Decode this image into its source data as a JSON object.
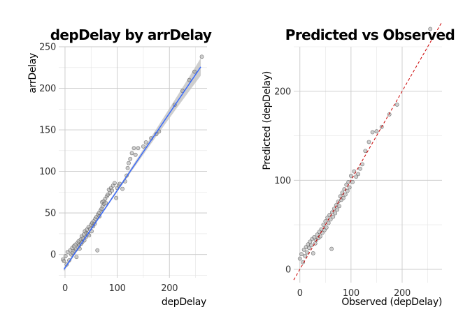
{
  "chart_data": [
    {
      "type": "scatter",
      "title": "depDelay by arrDelay",
      "xlabel": "depDelay",
      "ylabel": "arrDelay",
      "xlim": [
        -12,
        272
      ],
      "ylim": [
        -28,
        250
      ],
      "xticks": [
        0,
        100,
        200
      ],
      "yticks": [
        0,
        50,
        100,
        150,
        200,
        250
      ],
      "grid": true,
      "colors": {
        "points_fill": "#a6a6a6",
        "points_stroke": "#555555",
        "trend_line": "#3366ff",
        "ribbon": "#bdbdbd"
      },
      "trend": {
        "type": "linear",
        "intercept": -16,
        "slope": 0.93,
        "x_range": [
          -2,
          260
        ]
      },
      "points": [
        [
          -4,
          -6
        ],
        [
          -2,
          -8
        ],
        [
          1,
          -2
        ],
        [
          3,
          -12
        ],
        [
          5,
          3
        ],
        [
          8,
          -7
        ],
        [
          10,
          5
        ],
        [
          12,
          0
        ],
        [
          14,
          8
        ],
        [
          15,
          2
        ],
        [
          17,
          10
        ],
        [
          18,
          4
        ],
        [
          20,
          12
        ],
        [
          21,
          6
        ],
        [
          22,
          -3
        ],
        [
          24,
          14
        ],
        [
          25,
          9
        ],
        [
          26,
          16
        ],
        [
          27,
          11
        ],
        [
          28,
          7
        ],
        [
          30,
          18
        ],
        [
          31,
          13
        ],
        [
          32,
          22
        ],
        [
          33,
          15
        ],
        [
          34,
          19
        ],
        [
          36,
          24
        ],
        [
          37,
          17
        ],
        [
          38,
          28
        ],
        [
          40,
          21
        ],
        [
          41,
          26
        ],
        [
          42,
          30
        ],
        [
          44,
          25
        ],
        [
          45,
          33
        ],
        [
          46,
          23
        ],
        [
          48,
          31
        ],
        [
          50,
          36
        ],
        [
          51,
          28
        ],
        [
          52,
          38
        ],
        [
          54,
          34
        ],
        [
          55,
          40
        ],
        [
          57,
          37
        ],
        [
          58,
          43
        ],
        [
          60,
          45
        ],
        [
          62,
          5
        ],
        [
          63,
          48
        ],
        [
          65,
          50
        ],
        [
          66,
          46
        ],
        [
          68,
          53
        ],
        [
          70,
          55
        ],
        [
          71,
          63
        ],
        [
          72,
          58
        ],
        [
          74,
          64
        ],
        [
          75,
          61
        ],
        [
          77,
          67
        ],
        [
          78,
          62
        ],
        [
          80,
          70
        ],
        [
          82,
          72
        ],
        [
          84,
          78
        ],
        [
          86,
          74
        ],
        [
          88,
          80
        ],
        [
          90,
          77
        ],
        [
          92,
          83
        ],
        [
          95,
          86
        ],
        [
          98,
          68
        ],
        [
          100,
          80
        ],
        [
          103,
          83
        ],
        [
          105,
          85
        ],
        [
          110,
          79
        ],
        [
          115,
          88
        ],
        [
          118,
          95
        ],
        [
          120,
          104
        ],
        [
          122,
          110
        ],
        [
          125,
          115
        ],
        [
          128,
          122
        ],
        [
          132,
          128
        ],
        [
          135,
          120
        ],
        [
          140,
          128
        ],
        [
          150,
          130
        ],
        [
          155,
          135
        ],
        [
          165,
          140
        ],
        [
          175,
          145
        ],
        [
          180,
          148
        ],
        [
          210,
          180
        ],
        [
          225,
          197
        ],
        [
          238,
          210
        ],
        [
          248,
          220
        ],
        [
          262,
          238
        ]
      ]
    },
    {
      "type": "scatter",
      "title": "Predicted vs Observed",
      "xlabel": "Observed (depDelay)",
      "ylabel": "Predicted (depDelay)",
      "xlim": [
        -12,
        278
      ],
      "ylim": [
        -15,
        250
      ],
      "xticks": [
        0,
        100,
        200
      ],
      "yticks": [
        0,
        100,
        200
      ],
      "grid": true,
      "colors": {
        "points_fill": "#a6a6a6",
        "points_stroke": "#555555",
        "ref_line": "#cc0000"
      },
      "reference_line": {
        "type": "identity",
        "slope": 1,
        "intercept": 0
      },
      "points": [
        [
          0,
          12
        ],
        [
          3,
          17
        ],
        [
          6,
          8
        ],
        [
          8,
          22
        ],
        [
          10,
          15
        ],
        [
          12,
          25
        ],
        [
          14,
          19
        ],
        [
          16,
          28
        ],
        [
          18,
          24
        ],
        [
          20,
          31
        ],
        [
          22,
          27
        ],
        [
          24,
          34
        ],
        [
          26,
          18
        ],
        [
          28,
          36
        ],
        [
          30,
          29
        ],
        [
          32,
          33
        ],
        [
          34,
          39
        ],
        [
          36,
          35
        ],
        [
          38,
          42
        ],
        [
          40,
          37
        ],
        [
          42,
          45
        ],
        [
          44,
          41
        ],
        [
          46,
          50
        ],
        [
          48,
          44
        ],
        [
          50,
          54
        ],
        [
          52,
          47
        ],
        [
          54,
          58
        ],
        [
          56,
          52
        ],
        [
          58,
          61
        ],
        [
          60,
          56
        ],
        [
          62,
          23
        ],
        [
          63,
          64
        ],
        [
          65,
          59
        ],
        [
          67,
          68
        ],
        [
          69,
          63
        ],
        [
          71,
          72
        ],
        [
          73,
          67
        ],
        [
          75,
          76
        ],
        [
          77,
          71
        ],
        [
          79,
          82
        ],
        [
          81,
          78
        ],
        [
          83,
          86
        ],
        [
          85,
          80
        ],
        [
          87,
          90
        ],
        [
          89,
          84
        ],
        [
          91,
          95
        ],
        [
          93,
          88
        ],
        [
          95,
          98
        ],
        [
          97,
          92
        ],
        [
          100,
          105
        ],
        [
          103,
          98
        ],
        [
          106,
          110
        ],
        [
          110,
          104
        ],
        [
          114,
          107
        ],
        [
          118,
          113
        ],
        [
          122,
          118
        ],
        [
          128,
          133
        ],
        [
          135,
          143
        ],
        [
          142,
          154
        ],
        [
          150,
          155
        ],
        [
          160,
          160
        ],
        [
          175,
          174
        ],
        [
          190,
          185
        ],
        [
          255,
          270
        ]
      ]
    }
  ]
}
